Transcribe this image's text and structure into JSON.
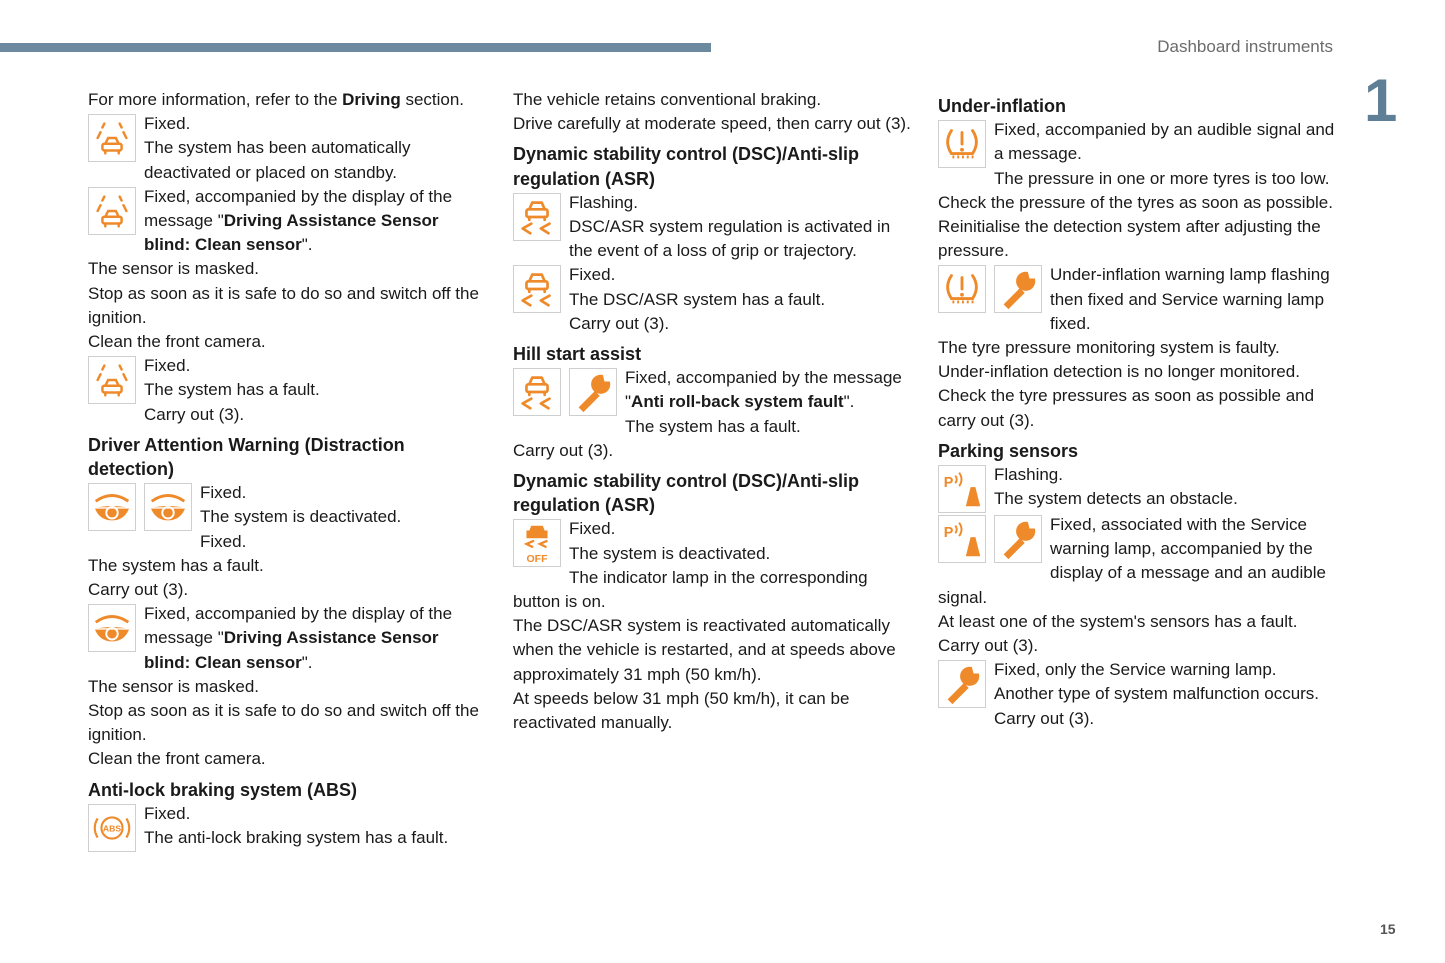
{
  "header": {
    "section_title": "Dashboard instruments",
    "chapter_number": "1",
    "page_number": "15"
  },
  "colors": {
    "accent_bar": "#6b8aa0",
    "icon_orange": "#ef8a2b",
    "chapter": "#5f7f96"
  },
  "columns": [
    {
      "items": [
        {
          "lines": [
            [
              {
                "t": "For more information, refer to the "
              },
              {
                "t": "Driving",
                "b": true
              },
              {
                "t": " section."
              }
            ]
          ]
        },
        {
          "icons": [
            "lane-assist-icon"
          ],
          "lines": [
            "Fixed.",
            "The system has been automatically deactivated or placed on standby."
          ]
        },
        {
          "icons": [
            "lane-assist-icon"
          ],
          "lines": [
            [
              {
                "t": "Fixed, accompanied by the display of the message \""
              },
              {
                "t": "Driving Assistance Sensor blind: Clean sensor",
                "b": true
              },
              {
                "t": "\"."
              }
            ],
            "The sensor is masked.",
            "Stop as soon as it is safe to do so and switch off the ignition.",
            "Clean the front camera."
          ]
        },
        {
          "icons": [
            "lane-assist-icon"
          ],
          "lines": [
            "Fixed.",
            "The system has a fault.",
            "Carry out (3)."
          ]
        },
        {
          "h": "Driver Attention Warning (Distraction detection)"
        },
        {
          "icons": [
            "drowsy-eye-icon",
            "drowsy-eye-icon"
          ],
          "lines": [
            "Fixed.",
            "The system is deactivated.",
            "Fixed.",
            "The system has a fault.",
            "Carry out (3)."
          ]
        },
        {
          "icons": [
            "drowsy-eye-icon"
          ],
          "lines": [
            [
              {
                "t": "Fixed, accompanied by the display of the message \""
              },
              {
                "t": "Driving Assistance Sensor blind: Clean sensor",
                "b": true
              },
              {
                "t": "\"."
              }
            ],
            "The sensor is masked.",
            "Stop as soon as it is safe to do so and switch off the ignition.",
            "Clean the front camera."
          ]
        },
        {
          "h": "Anti-lock braking system (ABS)"
        },
        {
          "icons": [
            "abs-icon"
          ],
          "lines": [
            "Fixed.",
            "The anti-lock braking system has a fault."
          ]
        }
      ]
    },
    {
      "items": [
        {
          "lines": [
            "The vehicle retains conventional braking.",
            "Drive carefully at moderate speed, then carry out (3)."
          ]
        },
        {
          "h": "Dynamic stability control (DSC)/Anti-slip regulation (ASR)"
        },
        {
          "icons": [
            "dsc-skid-icon"
          ],
          "lines": [
            "Flashing.",
            "DSC/ASR system regulation is activated in the event of a loss of grip or trajectory."
          ]
        },
        {
          "icons": [
            "dsc-skid-icon"
          ],
          "lines": [
            "Fixed.",
            "The DSC/ASR system has a fault.",
            "Carry out (3)."
          ]
        },
        {
          "h": "Hill start assist"
        },
        {
          "icons": [
            "dsc-skid-icon",
            "wrench-icon"
          ],
          "lines": [
            [
              {
                "t": "Fixed, accompanied by the message \""
              },
              {
                "t": "Anti roll-back system fault",
                "b": true
              },
              {
                "t": "\"."
              }
            ],
            "The system has a fault.",
            "Carry out (3)."
          ]
        },
        {
          "h": "Dynamic stability control (DSC)/Anti-slip regulation (ASR)"
        },
        {
          "icons": [
            "dsc-off-icon"
          ],
          "lines": [
            "Fixed.",
            "The system is deactivated.",
            "The indicator lamp in the corresponding button is on.",
            "The DSC/ASR system is reactivated automatically when the vehicle is restarted, and at speeds above approximately 31 mph (50 km/h).",
            "At speeds below 31 mph (50 km/h), it can be reactivated manually."
          ]
        }
      ]
    },
    {
      "items": [
        {
          "h": "Under-inflation"
        },
        {
          "icons": [
            "tyre-pressure-icon"
          ],
          "lines": [
            "Fixed, accompanied by an audible signal and a message.",
            "The pressure in one or more tyres is too low.",
            "Check the pressure of the tyres as soon as possible.",
            "Reinitialise the detection system after adjusting the pressure."
          ]
        },
        {
          "icons": [
            "tyre-pressure-icon",
            "wrench-icon"
          ],
          "lines": [
            "Under-inflation warning lamp flashing then fixed and Service warning lamp fixed.",
            "The tyre pressure monitoring system is faulty.",
            "Under-inflation detection is no longer monitored.",
            "Check the tyre pressures as soon as possible and carry out (3)."
          ]
        },
        {
          "h": "Parking sensors"
        },
        {
          "icons": [
            "parking-sensor-icon"
          ],
          "lines": [
            "Flashing.",
            "The system detects an obstacle."
          ]
        },
        {
          "icons": [
            "parking-sensor-icon",
            "wrench-icon"
          ],
          "lines": [
            "Fixed, associated with the Service warning lamp, accompanied by the display of a message and an audible signal.",
            "At least one of the system's sensors has a fault.",
            "Carry out (3)."
          ]
        },
        {
          "icons": [
            "wrench-icon"
          ],
          "lines": [
            "Fixed, only the Service warning lamp.",
            "Another type of system malfunction occurs.",
            "Carry out (3)."
          ]
        }
      ]
    }
  ]
}
